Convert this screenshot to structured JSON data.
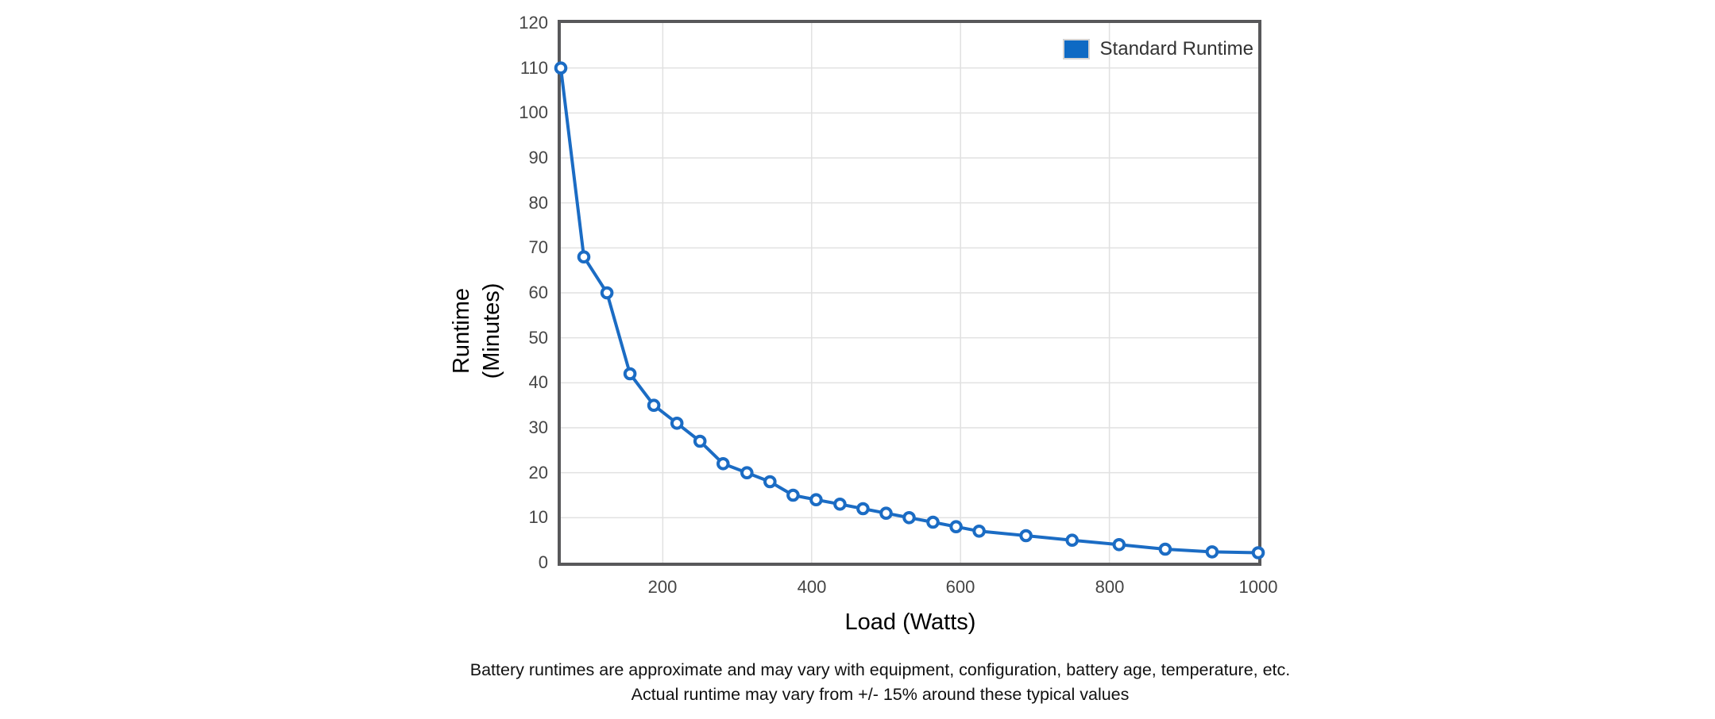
{
  "chart_data": {
    "type": "line",
    "title": "",
    "xlabel": "Load (Watts)",
    "ylabel_line1": "Runtime",
    "ylabel_line2": "(Minutes)",
    "xlim": [
      63,
      1000
    ],
    "ylim": [
      0,
      120
    ],
    "xticks": [
      200,
      400,
      600,
      800,
      1000
    ],
    "yticks": [
      0,
      10,
      20,
      30,
      40,
      50,
      60,
      70,
      80,
      90,
      100,
      110,
      120
    ],
    "grid": true,
    "legend_position": "top-right",
    "series": [
      {
        "name": "Standard Runtime",
        "x": [
          63,
          94,
          125,
          156,
          188,
          219,
          250,
          281,
          313,
          344,
          375,
          406,
          438,
          469,
          500,
          531,
          563,
          594,
          625,
          688,
          750,
          813,
          875,
          938,
          1000
        ],
        "y": [
          110,
          68,
          60,
          42,
          35,
          31,
          27,
          22,
          20,
          18,
          15,
          14,
          13,
          12,
          11,
          10,
          9,
          8,
          7,
          6,
          5,
          4,
          3,
          2.4,
          2.2
        ]
      }
    ],
    "colors": {
      "line": "#1b6cc4",
      "marker_fill": "#ffffff",
      "legend_swatch": "#0e6ac4",
      "grid": "#e1e1e1",
      "frame": "#58585a"
    }
  },
  "footer": {
    "line1": "Battery runtimes are approximate and may vary with equipment, configuration, battery age, temperature, etc.",
    "line2": "Actual runtime may vary from +/- 15% around these typical values"
  }
}
